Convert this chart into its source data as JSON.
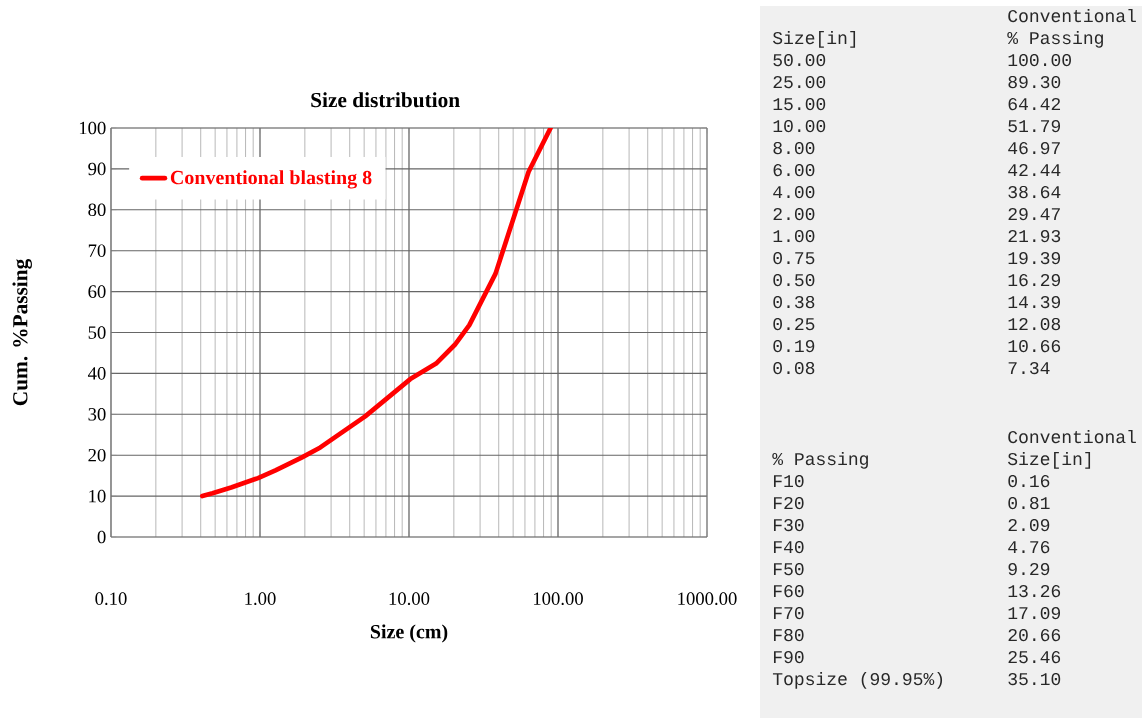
{
  "chart_data": [
    {
      "type": "line",
      "title": "Size distribution",
      "xlabel": "Size (cm)",
      "ylabel": "Cum. %Passing",
      "log": "x",
      "grid": true,
      "legend": "top left",
      "xlim": [
        0.1,
        1000
      ],
      "xticks": [
        {
          "value": 0.1,
          "label": "0.10"
        },
        {
          "value": 1,
          "label": "1.00"
        },
        {
          "value": 10,
          "label": "10.00"
        },
        {
          "value": 100,
          "label": "100.00"
        },
        {
          "value": 1000,
          "label": "1000.00"
        }
      ],
      "ylim": [
        0,
        100
      ],
      "yticks": [
        0,
        10,
        20,
        30,
        40,
        50,
        60,
        70,
        80,
        90,
        100
      ],
      "series": [
        {
          "name": "Conventional blasting 8",
          "color": "#ff0000",
          "x": [
            0.41,
            0.48,
            0.64,
            0.97,
            1.27,
            1.9,
            2.54,
            5.08,
            10.2,
            15.2,
            20.3,
            25.4,
            38.1,
            63.5,
            89.2
          ],
          "values": [
            10,
            10.7,
            12.1,
            14.4,
            16.3,
            19.4,
            21.9,
            29.5,
            38.6,
            42.4,
            47,
            51.8,
            64.4,
            89.3,
            100
          ]
        }
      ]
    },
    {
      "type": "other",
      "annotations": [
        "Conventional",
        "Size[in]",
        "% Passing",
        "50.00",
        "100.00",
        "25.00",
        "89.30",
        "15.00",
        "64.42",
        "10.00",
        "51.79",
        "8.00",
        "46.97",
        "6.00",
        "42.44",
        "4.00",
        "38.64",
        "2.00",
        "29.47",
        "1.00",
        "21.93",
        "0.75",
        "19.39",
        "0.50",
        "16.29",
        "0.38",
        "14.39",
        "0.25",
        "12.08",
        "0.19",
        "10.66",
        "0.08",
        "7.34"
      ]
    },
    {
      "type": "other",
      "annotations": [
        "Conventional",
        "% Passing",
        "Size[in]",
        "F10",
        "0.16",
        "F20",
        "0.81",
        "F30",
        "2.09",
        "F40",
        "4.76",
        "F50",
        "9.29",
        "F60",
        "13.26",
        "F70",
        "17.09",
        "F80",
        "20.66",
        "F90",
        "25.46",
        "Topsize (99.95%)",
        "35.10"
      ]
    }
  ]
}
